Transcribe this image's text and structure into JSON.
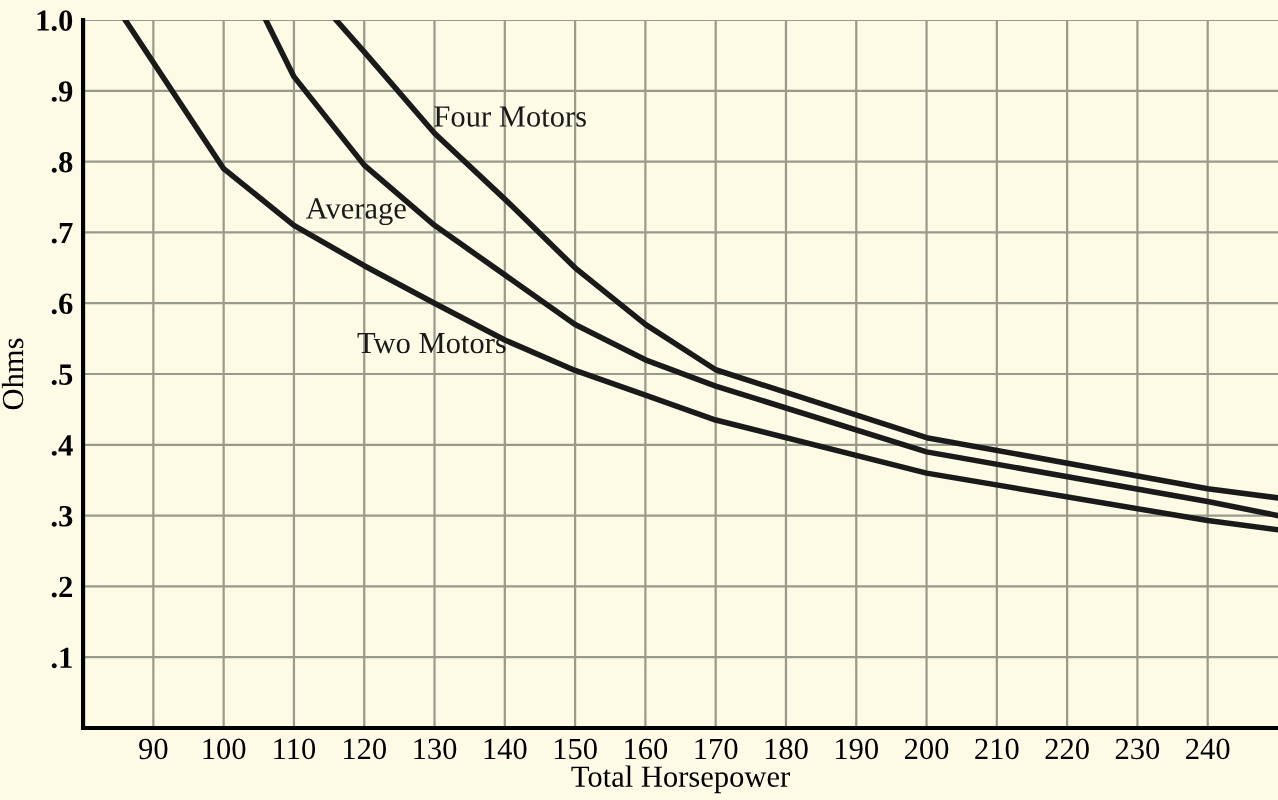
{
  "chart_data": {
    "type": "line",
    "xlabel": "Total Horsepower",
    "ylabel": "Ohms",
    "xlim": [
      80,
      250
    ],
    "xticks": [
      90,
      100,
      110,
      120,
      130,
      140,
      150,
      160,
      170,
      180,
      190,
      200,
      210,
      220,
      230,
      240
    ],
    "ylim": [
      0,
      1.0
    ],
    "yticks": [
      {
        "value": 0.1,
        "label": ".1"
      },
      {
        "value": 0.2,
        "label": ".2"
      },
      {
        "value": 0.3,
        "label": ".3"
      },
      {
        "value": 0.4,
        "label": ".4"
      },
      {
        "value": 0.5,
        "label": ".5"
      },
      {
        "value": 0.6,
        "label": ".6"
      },
      {
        "value": 0.7,
        "label": ".7"
      },
      {
        "value": 0.8,
        "label": ".8"
      },
      {
        "value": 0.9,
        "label": ".9"
      },
      {
        "value": 1.0,
        "label": "1.0"
      }
    ],
    "grid": true,
    "legend": false,
    "marker": "none",
    "line_style": "solid",
    "series": [
      {
        "name": "Four Motors",
        "color": "#1a1a1a",
        "x": [
          116,
          120,
          130,
          140,
          150,
          160,
          170,
          200,
          240,
          250
        ],
        "values": [
          1.0,
          0.955,
          0.84,
          0.747,
          0.65,
          0.57,
          0.506,
          0.41,
          0.338,
          0.325
        ]
      },
      {
        "name": "Average",
        "color": "#1a1a1a",
        "x": [
          106,
          110,
          120,
          130,
          140,
          150,
          160,
          170,
          200,
          240,
          250
        ],
        "values": [
          1.0,
          0.92,
          0.795,
          0.71,
          0.64,
          0.57,
          0.52,
          0.483,
          0.39,
          0.32,
          0.3
        ]
      },
      {
        "name": "Two Motors",
        "color": "#1a1a1a",
        "x": [
          86,
          100,
          110,
          120,
          130,
          140,
          150,
          160,
          170,
          200,
          240,
          250
        ],
        "values": [
          1.0,
          0.79,
          0.71,
          0.653,
          0.6,
          0.548,
          0.505,
          0.47,
          0.435,
          0.36,
          0.293,
          0.28
        ]
      }
    ]
  }
}
